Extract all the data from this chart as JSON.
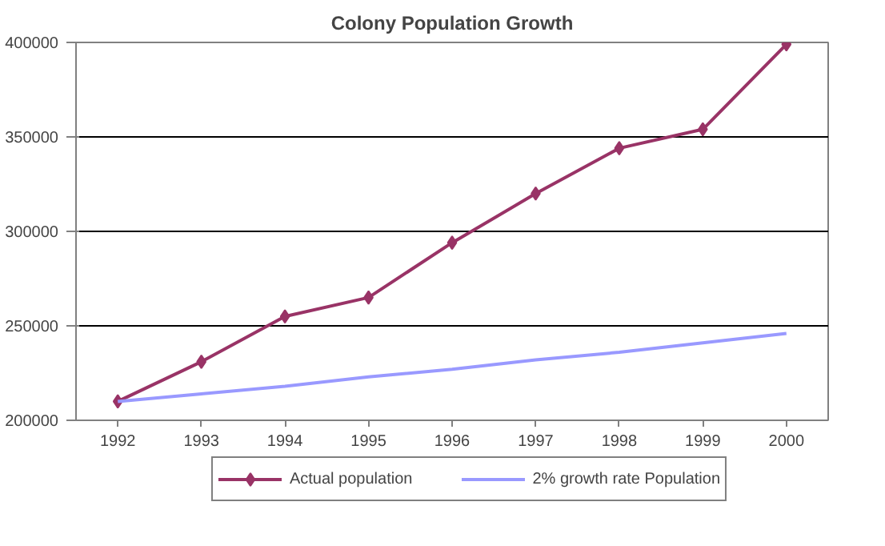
{
  "chart_data": {
    "type": "line",
    "title": "Colony Population Growth",
    "categories": [
      "1992",
      "1993",
      "1994",
      "1995",
      "1996",
      "1997",
      "1998",
      "1999",
      "2000"
    ],
    "series": [
      {
        "name": "Actual population",
        "color": "#993366",
        "marker": "diamond",
        "values": [
          210000,
          231000,
          255000,
          265000,
          294000,
          320000,
          344000,
          354000,
          399000
        ]
      },
      {
        "name": "2% growth rate Population",
        "color": "#9999ff",
        "marker": "none",
        "values": [
          210000,
          214000,
          218000,
          223000,
          227000,
          232000,
          236000,
          241000,
          246000
        ]
      }
    ],
    "ylim": [
      200000,
      400000
    ],
    "yticks": [
      200000,
      250000,
      300000,
      350000,
      400000
    ],
    "grid": "y",
    "legend": "bottom",
    "line_style": "solid"
  }
}
